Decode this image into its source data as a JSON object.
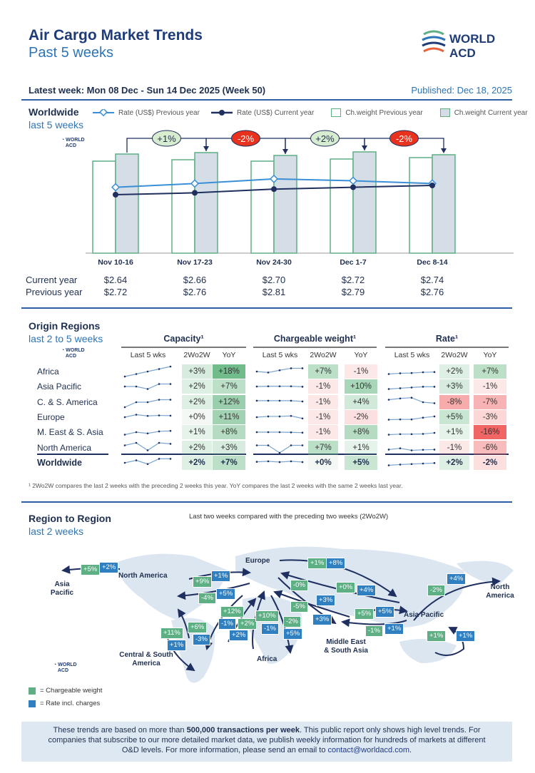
{
  "header": {
    "title": "Air Cargo Market Trends",
    "subtitle": "Past 5 weeks",
    "logo_text": "WORLD ACD"
  },
  "meta": {
    "latest_week": "Latest week:  Mon 08 Dec - Sun 14 Dec 2025 (Week 50)",
    "published": "Published: Dec 18, 2025"
  },
  "worldwide": {
    "title": "Worldwide",
    "subtitle": "last 5 weeks",
    "legend": [
      "Rate (US$) Previous year",
      "Rate (US$) Current year",
      "Ch.weight Previous year",
      "Ch.weight Current year"
    ],
    "row_labels": [
      "Current year",
      "Previous year"
    ]
  },
  "chart_data": {
    "type": "bar+line",
    "categories": [
      "Nov 10-16",
      "Nov 17-23",
      "Nov 24-30",
      "Dec 1-7",
      "Dec 8-14"
    ],
    "series": [
      {
        "name": "Ch.weight Previous year",
        "type": "bar",
        "relative_values": [
          129,
          131,
          129,
          132,
          134
        ]
      },
      {
        "name": "Ch.weight Current year",
        "type": "bar",
        "relative_values": [
          139,
          141,
          137,
          142,
          138
        ]
      },
      {
        "name": "Rate (US$) Previous year",
        "type": "line",
        "values": [
          "$2.72",
          "$2.76",
          "$2.81",
          "$2.79",
          "$2.76"
        ]
      },
      {
        "name": "Rate (US$) Current year",
        "type": "line",
        "values": [
          "$2.64",
          "$2.66",
          "$2.70",
          "$2.72",
          "$2.74"
        ]
      }
    ],
    "week_changes": [
      "+1%",
      "-2%",
      "+2%",
      "-2%"
    ],
    "colors": {
      "bar_border": "#5faf85",
      "bar_current": "#d5dde6",
      "line_prev": "#3a8fd6",
      "line_cur": "#1f2f5f",
      "up": "#d8ecd0",
      "down": "#e8321e"
    }
  },
  "origin": {
    "title": "Origin Regions",
    "subtitle": "last 2 to 5 weeks",
    "groups": [
      "Capacity¹",
      "Chargeable weight¹",
      "Rate¹"
    ],
    "subheaders": [
      "Last 5 wks",
      "2Wo2W",
      "YoY"
    ],
    "rows": [
      {
        "name": "Africa",
        "cap": [
          "+3%",
          "+18%"
        ],
        "cw": [
          "+7%",
          "-1%"
        ],
        "rate": [
          "+2%",
          "+7%"
        ],
        "trend": {
          "cap": [
            0,
            1,
            2,
            3,
            4
          ],
          "cw": [
            2,
            1.6,
            2.5,
            3.3,
            3.3
          ],
          "rate": [
            1,
            1.3,
            1.4,
            1.7,
            1.8
          ]
        }
      },
      {
        "name": "Asia Pacific",
        "cap": [
          "+2%",
          "+7%"
        ],
        "cw": [
          "-1%",
          "+10%"
        ],
        "rate": [
          "+3%",
          "-1%"
        ],
        "trend": {
          "cap": [
            2,
            2,
            1,
            3,
            3
          ],
          "cw": [
            2,
            2.1,
            2.1,
            2.1,
            1.9
          ],
          "rate": [
            1,
            1.3,
            1.6,
            1.9,
            1.9
          ]
        }
      },
      {
        "name": "C. & S. America",
        "cap": [
          "+2%",
          "+12%"
        ],
        "cw": [
          "-1%",
          "+4%"
        ],
        "rate": [
          "-8%",
          "-7%"
        ],
        "trend": {
          "cap": [
            0,
            2,
            2,
            3,
            3
          ],
          "cw": [
            2.6,
            2.6,
            2.6,
            2.6,
            2.3
          ],
          "rate": [
            3,
            3.5,
            3.8,
            2,
            1.6
          ]
        }
      },
      {
        "name": "Europe",
        "cap": [
          "+0%",
          "+11%"
        ],
        "cw": [
          "-1%",
          "-2%"
        ],
        "rate": [
          "+5%",
          "-3%"
        ],
        "trend": {
          "cap": [
            2,
            3,
            2.5,
            2.7,
            2.6
          ],
          "cw": [
            2,
            2.3,
            2.3,
            2.5,
            1.5
          ],
          "rate": [
            1,
            1.1,
            1.1,
            1.8,
            2.3
          ]
        }
      },
      {
        "name": "M. East & S. Asia",
        "cap": [
          "+1%",
          "+8%"
        ],
        "cw": [
          "-1%",
          "+8%"
        ],
        "rate": [
          "+1%",
          "-16%"
        ],
        "trend": {
          "cap": [
            1,
            2,
            1.5,
            2.3,
            2.5
          ],
          "cw": [
            2,
            2,
            2,
            1.9,
            1.8
          ],
          "rate": [
            1,
            1.2,
            1.2,
            1.3,
            1.7
          ]
        }
      },
      {
        "name": "North America",
        "cap": [
          "+2%",
          "+3%"
        ],
        "cw": [
          "+7%",
          "+1%"
        ],
        "rate": [
          "-1%",
          "-6%"
        ],
        "trend": {
          "cap": [
            3,
            4,
            1,
            4,
            3.6
          ],
          "cw": [
            3,
            3,
            0,
            3,
            3
          ],
          "rate": [
            1.3,
            1.8,
            1,
            1.2,
            1.3
          ]
        }
      },
      {
        "name": "Worldwide",
        "cap": [
          "+2%",
          "+7%"
        ],
        "cw": [
          "+0%",
          "+5%"
        ],
        "rate": [
          "+2%",
          "-2%"
        ],
        "trend": {
          "cap": [
            2,
            3,
            1.5,
            3.6,
            3.6
          ],
          "cw": [
            2.4,
            2.6,
            2.3,
            2.6,
            2.3
          ],
          "rate": [
            1,
            1.3,
            1.5,
            1.7,
            1.9
          ]
        }
      }
    ],
    "footnote": "¹ 2Wo2W compares the last 2 weeks with the preceding 2 weeks this year. YoY compares the last 2 weeks with the same 2 weeks last year."
  },
  "r2r": {
    "title": "Region to Region",
    "subtitle": "last 2 weeks",
    "caption": "Last two weeks compared with the preceding two weeks (2Wo2W)",
    "regions": [
      "North America",
      "Asia\nPacific",
      "Europe",
      "Asia Pacific",
      "North\nAmerica",
      "Middle East\n& South Asia",
      "Africa",
      "Central & South\nAmerica"
    ],
    "tags": [
      {
        "t": "g",
        "v": "+5%"
      },
      {
        "t": "b",
        "v": "+2%"
      },
      {
        "t": "g",
        "v": "+9%"
      },
      {
        "t": "b",
        "v": "+1%"
      },
      {
        "t": "g",
        "v": "-4%"
      },
      {
        "t": "b",
        "v": "+5%"
      },
      {
        "t": "g",
        "v": "+1%"
      },
      {
        "t": "b",
        "v": "+8%"
      },
      {
        "t": "g",
        "v": "-0%"
      },
      {
        "t": "g",
        "v": "+0%"
      },
      {
        "t": "b",
        "v": "+4%"
      },
      {
        "t": "b",
        "v": "+3%"
      },
      {
        "t": "g",
        "v": "-5%"
      },
      {
        "t": "b",
        "v": "+3%"
      },
      {
        "t": "g",
        "v": "+5%"
      },
      {
        "t": "b",
        "v": "+5%"
      },
      {
        "t": "g",
        "v": "+12%"
      },
      {
        "t": "b",
        "v": "-1%"
      },
      {
        "t": "g",
        "v": "+2%"
      },
      {
        "t": "b",
        "v": "+2%"
      },
      {
        "t": "g",
        "v": "+10%"
      },
      {
        "t": "b",
        "v": "-1%"
      },
      {
        "t": "g",
        "v": "-2%"
      },
      {
        "t": "b",
        "v": "+5%"
      },
      {
        "t": "g",
        "v": "+6%"
      },
      {
        "t": "b",
        "v": "-3%"
      },
      {
        "t": "g",
        "v": "+11%"
      },
      {
        "t": "b",
        "v": "+1%"
      },
      {
        "t": "g",
        "v": "-1%"
      },
      {
        "t": "b",
        "v": "+1%"
      },
      {
        "t": "g",
        "v": "+1%"
      },
      {
        "t": "b",
        "v": "+1%"
      },
      {
        "t": "g",
        "v": "-2%"
      },
      {
        "t": "b",
        "v": "+4%"
      }
    ],
    "legend": [
      "= Chargeable weight",
      "= Rate incl. charges"
    ],
    "colors": {
      "chargeable_weight": "#5faf85",
      "rate": "#2f7fc1",
      "map": "#dbe6f1"
    }
  },
  "footer": {
    "text1": "These trends are based on more than ",
    "bold": "500,000 transactions per week",
    "text2": ". This public report only shows high level trends. For companies that subscribe to our more detailed market data, we publish weekly information for hundreds of markets at different O&D levels. For more information, please send an email to ",
    "email": "contact@worldacd.com",
    "text3": "."
  }
}
